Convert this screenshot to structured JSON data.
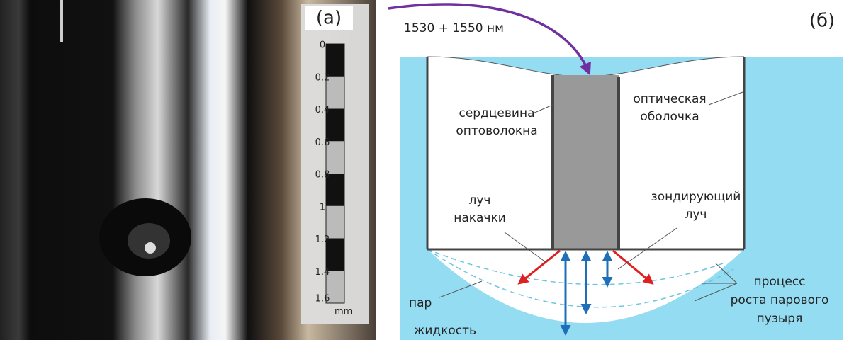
{
  "panel_a": {
    "label": "(а)",
    "scale": {
      "ticks": [
        "0",
        "0.2",
        "0.4",
        "0.6",
        "0.8",
        "1",
        "1.2",
        "1.4",
        "1.6"
      ],
      "unit": "mm"
    }
  },
  "panel_b": {
    "label": "(б)",
    "wavelength": "1530 + 1550 нм",
    "core": [
      "сердцевина",
      "оптоволокна"
    ],
    "cladding": [
      "оптическая",
      "оболочка"
    ],
    "pump": [
      "луч",
      "накачки"
    ],
    "probe": [
      "зондирующий",
      "луч"
    ],
    "growth": [
      "процесс",
      "роста парового",
      "пузыря"
    ],
    "vapor": "пар",
    "liquid": "жидкость"
  }
}
